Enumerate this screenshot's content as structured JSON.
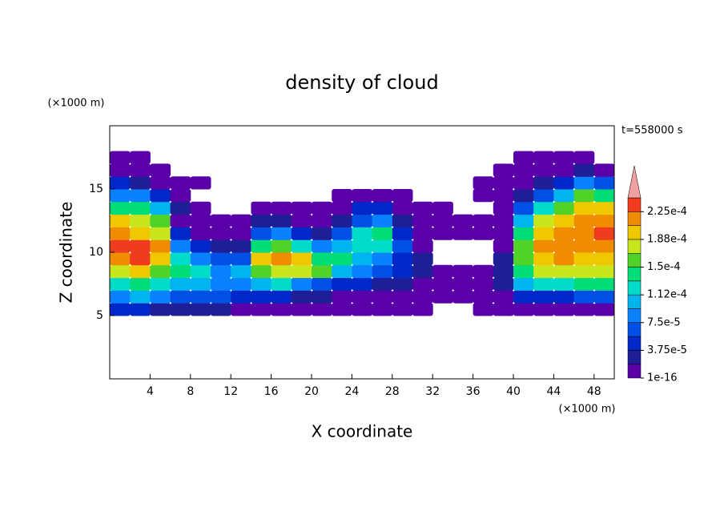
{
  "chart_data": {
    "type": "contour",
    "title": "density of cloud",
    "x_label": "X coordinate",
    "y_label": "Z coordinate",
    "x_unit": "(×1000 m)",
    "y_unit": "(×1000 m)",
    "time_label": "t=558000 s",
    "xlim": [
      0,
      50
    ],
    "ylim": [
      0,
      20
    ],
    "xticks": [
      4,
      8,
      12,
      16,
      20,
      24,
      28,
      32,
      36,
      40,
      44,
      48
    ],
    "yticks": [
      5,
      10,
      15
    ],
    "x": [
      1,
      3,
      5,
      7,
      9,
      11,
      13,
      15,
      17,
      19,
      21,
      23,
      25,
      27,
      29,
      31,
      33,
      35,
      37,
      39,
      41,
      43,
      45,
      47,
      49
    ],
    "z": [
      5.5,
      6.5,
      7.5,
      8.5,
      9.5,
      10.5,
      11.5,
      12.5,
      13.5,
      14.5,
      15.5,
      16.5,
      17.5
    ],
    "values": [
      [
        3.75e-05,
        7.5e-05,
        0.0001125,
        0.00016875,
        0.00020625,
        0.000225,
        0.00020625,
        0.0001875,
        0.00013125,
        7.5e-05,
        3.75e-05,
        1e-16,
        1e-16
      ],
      [
        3.75e-05,
        9.375e-05,
        0.00013125,
        0.0001875,
        0.000225,
        0.000225,
        0.0001875,
        0.00016875,
        0.00013125,
        7.5e-05,
        1.875e-05,
        1e-16,
        1e-16
      ],
      [
        1.875e-05,
        7.5e-05,
        0.0001125,
        0.00015,
        0.0001875,
        0.00020625,
        0.00016875,
        0.00015,
        9.375e-05,
        3.75e-05,
        1e-16,
        1e-16,
        null
      ],
      [
        1.875e-05,
        5.625e-05,
        9.375e-05,
        0.00013125,
        0.0001125,
        7.5e-05,
        3.75e-05,
        1e-16,
        1.875e-05,
        1e-16,
        1e-16,
        null,
        null
      ],
      [
        1.875e-05,
        5.625e-05,
        9.375e-05,
        0.0001125,
        7.5e-05,
        3.75e-05,
        1e-16,
        1e-16,
        1e-16,
        null,
        1e-16,
        null,
        null
      ],
      [
        1.875e-05,
        5.625e-05,
        7.5e-05,
        7.5e-05,
        5.625e-05,
        1.875e-05,
        1e-16,
        1e-16,
        null,
        null,
        null,
        null,
        null
      ],
      [
        1e-16,
        3.75e-05,
        7.5e-05,
        9.375e-05,
        5.625e-05,
        1.875e-05,
        1e-16,
        1e-16,
        null,
        null,
        null,
        null,
        null
      ],
      [
        1e-16,
        3.75e-05,
        9.375e-05,
        0.00015,
        0.0001875,
        0.00013125,
        5.625e-05,
        1.875e-05,
        1e-16,
        null,
        null,
        null,
        null
      ],
      [
        1e-16,
        3.75e-05,
        0.0001125,
        0.00016875,
        0.00020625,
        0.00015,
        7.5e-05,
        1.875e-05,
        1e-16,
        null,
        null,
        null,
        null
      ],
      [
        1e-16,
        1.875e-05,
        7.5e-05,
        0.00016875,
        0.0001875,
        0.0001125,
        3.75e-05,
        1e-16,
        1e-16,
        null,
        null,
        null,
        null
      ],
      [
        1e-16,
        1.875e-05,
        5.625e-05,
        0.00015,
        0.00013125,
        7.5e-05,
        1.875e-05,
        1e-16,
        1e-16,
        null,
        null,
        null,
        null
      ],
      [
        1e-16,
        1e-16,
        3.75e-05,
        9.375e-05,
        0.00013125,
        9.375e-05,
        5.625e-05,
        1.875e-05,
        1e-16,
        1e-16,
        null,
        null,
        null
      ],
      [
        1e-16,
        1e-16,
        3.75e-05,
        7.5e-05,
        9.375e-05,
        0.0001125,
        0.0001125,
        5.625e-05,
        3.75e-05,
        1e-16,
        null,
        null,
        null
      ],
      [
        1e-16,
        1e-16,
        1.875e-05,
        5.625e-05,
        7.5e-05,
        0.0001125,
        0.00013125,
        7.5e-05,
        3.75e-05,
        1e-16,
        null,
        null,
        null
      ],
      [
        1e-16,
        1e-16,
        1.875e-05,
        3.75e-05,
        3.75e-05,
        5.625e-05,
        3.75e-05,
        1.875e-05,
        1e-16,
        1e-16,
        null,
        null,
        null
      ],
      [
        1e-16,
        1e-16,
        1e-16,
        1.875e-05,
        1.875e-05,
        1e-16,
        1e-16,
        1e-16,
        1e-16,
        null,
        null,
        null,
        null
      ],
      [
        null,
        1e-16,
        1e-16,
        1e-16,
        null,
        null,
        1e-16,
        1e-16,
        1e-16,
        null,
        null,
        null,
        null
      ],
      [
        null,
        1e-16,
        1e-16,
        1e-16,
        null,
        null,
        1e-16,
        1e-16,
        null,
        null,
        null,
        null,
        null
      ],
      [
        1e-16,
        1e-16,
        1e-16,
        1e-16,
        null,
        null,
        1e-16,
        1e-16,
        null,
        1e-16,
        1e-16,
        null,
        null
      ],
      [
        1e-16,
        1e-16,
        1.875e-05,
        1.875e-05,
        1.875e-05,
        1e-16,
        1e-16,
        1e-16,
        1e-16,
        1e-16,
        1e-16,
        1e-16,
        null
      ],
      [
        1e-16,
        3.75e-05,
        9.375e-05,
        0.00013125,
        0.00015,
        0.00015,
        0.00013125,
        9.375e-05,
        5.625e-05,
        1.875e-05,
        1e-16,
        1e-16,
        1e-16
      ],
      [
        1e-16,
        3.75e-05,
        0.0001125,
        0.00016875,
        0.0001875,
        0.00020625,
        0.0001875,
        0.00016875,
        0.0001125,
        5.625e-05,
        1.875e-05,
        1e-16,
        1e-16
      ],
      [
        1e-16,
        3.75e-05,
        0.0001125,
        0.00016875,
        0.00020625,
        0.00020625,
        0.00020625,
        0.0001875,
        0.00015,
        9.375e-05,
        3.75e-05,
        1e-16,
        1e-16
      ],
      [
        1e-16,
        5.625e-05,
        0.00013125,
        0.00016875,
        0.0001875,
        0.00020625,
        0.00020625,
        0.00020625,
        0.0001875,
        0.00015,
        7.5e-05,
        1.875e-05,
        1e-16
      ],
      [
        1e-16,
        5.625e-05,
        0.00013125,
        0.00016875,
        0.0001875,
        0.00020625,
        0.000225,
        0.00020625,
        0.0001875,
        0.00013125,
        5.625e-05,
        1e-16,
        null
      ]
    ],
    "levels": [
      1e-16,
      1.875e-05,
      3.75e-05,
      5.625e-05,
      7.5e-05,
      9.375e-05,
      0.0001125,
      0.00013125,
      0.00015,
      0.00016875,
      0.0001875,
      0.00020625,
      0.000225
    ],
    "colors": [
      "#5a00a8",
      "#1e1e96",
      "#0028c8",
      "#0050e6",
      "#0a82ff",
      "#00b4f0",
      "#00dcc8",
      "#00dc78",
      "#50d228",
      "#c8e61e",
      "#f0c800",
      "#f08c00",
      "#f03c1e"
    ],
    "over_color": "#f0a0a0",
    "colorbar_ticks": [
      {
        "value": 1e-16,
        "label": "1e-16"
      },
      {
        "value": 3.75e-05,
        "label": "3.75e-5"
      },
      {
        "value": 7.5e-05,
        "label": "7.5e-5"
      },
      {
        "value": 0.0001125,
        "label": "1.12e-4"
      },
      {
        "value": 0.00015,
        "label": "1.5e-4"
      },
      {
        "value": 0.0001875,
        "label": "1.88e-4"
      },
      {
        "value": 0.000225,
        "label": "2.25e-4"
      }
    ]
  }
}
